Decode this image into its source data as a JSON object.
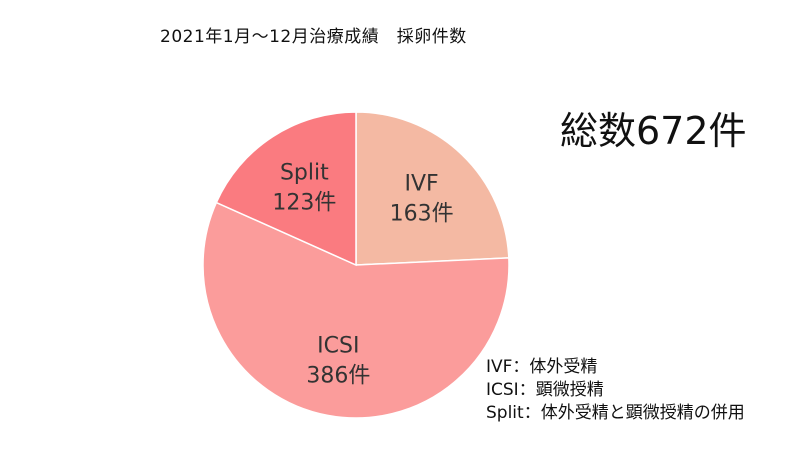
{
  "chart_data": {
    "type": "pie",
    "title": "2021年1月～12月治療成績　採卵件数",
    "total_label": "総数672件",
    "slices": [
      {
        "name": "IVF",
        "value": 163,
        "value_label": "163件",
        "color": "#f4b9a3"
      },
      {
        "name": "ICSI",
        "value": 386,
        "value_label": "386件",
        "color": "#fb9c9b"
      },
      {
        "name": "Split",
        "value": 123,
        "value_label": "123件",
        "color": "#fa7b80"
      }
    ],
    "legend": [
      "IVF：体外受精",
      "ICSI：顕微授精",
      "Split：体外受精と顕微授精の併用"
    ]
  }
}
